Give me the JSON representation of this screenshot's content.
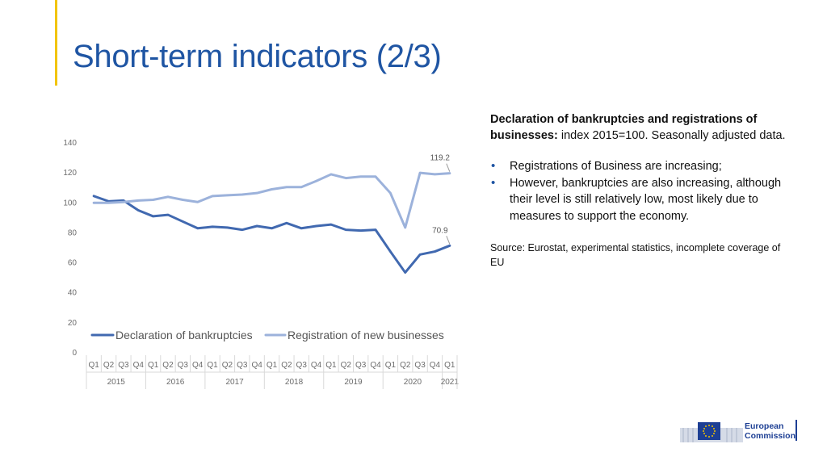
{
  "slide": {
    "title": "Short-term indicators (2/3)"
  },
  "colors": {
    "title_blue": "#1f55a3",
    "accent_yellow": "#f2c400",
    "bankruptcies": "#4169b0",
    "registrations": "#9cb2db"
  },
  "chart_data": {
    "type": "line",
    "ylim": [
      0,
      140
    ],
    "yticks": [
      0,
      20,
      40,
      60,
      80,
      100,
      120,
      140
    ],
    "x_quarters": [
      "Q1",
      "Q2",
      "Q3",
      "Q4",
      "Q1",
      "Q2",
      "Q3",
      "Q4",
      "Q1",
      "Q2",
      "Q3",
      "Q4",
      "Q1",
      "Q2",
      "Q3",
      "Q4",
      "Q1",
      "Q2",
      "Q3",
      "Q4",
      "Q1",
      "Q2",
      "Q3",
      "Q4",
      "Q1"
    ],
    "x_years": [
      {
        "label": "2015",
        "quarters": 4
      },
      {
        "label": "2016",
        "quarters": 4
      },
      {
        "label": "2017",
        "quarters": 4
      },
      {
        "label": "2018",
        "quarters": 4
      },
      {
        "label": "2019",
        "quarters": 4
      },
      {
        "label": "2020",
        "quarters": 4
      },
      {
        "label": "2021",
        "quarters": 1
      }
    ],
    "series": [
      {
        "name": "Declaration of bankruptcies",
        "color": "#4169b0",
        "values": [
          104,
          100.5,
          101,
          94.5,
          90.5,
          91.5,
          87,
          82.5,
          83.5,
          83,
          81.5,
          84,
          82.5,
          86,
          82.5,
          84,
          85,
          81.5,
          81,
          81.5,
          67,
          53,
          65,
          67,
          70.9
        ],
        "end_label": "70.9"
      },
      {
        "name": "Registration of new businesses",
        "color": "#9cb2db",
        "values": [
          99.5,
          99.5,
          100,
          101,
          101.5,
          103.5,
          101.5,
          100,
          104,
          104.5,
          105,
          106,
          108.5,
          110,
          110,
          114,
          118.5,
          116,
          117,
          117,
          106,
          83,
          119.5,
          118.5,
          119.2
        ],
        "end_label": "119.2"
      }
    ],
    "legend_position": "inside-bottom"
  },
  "panel": {
    "heading_bold": "Declaration of bankruptcies and registrations of businesses:",
    "heading_rest": " index 2015=100. Seasonally adjusted data.",
    "bullets": [
      "Registrations of Business are increasing;",
      "However, bankruptcies are also increasing, although their level is still relatively low, most likely due to measures to support the economy."
    ],
    "source": "Source: Eurostat, experimental statistics, incomplete coverage of EU"
  },
  "logo": {
    "line1": "European",
    "line2": "Commission"
  }
}
